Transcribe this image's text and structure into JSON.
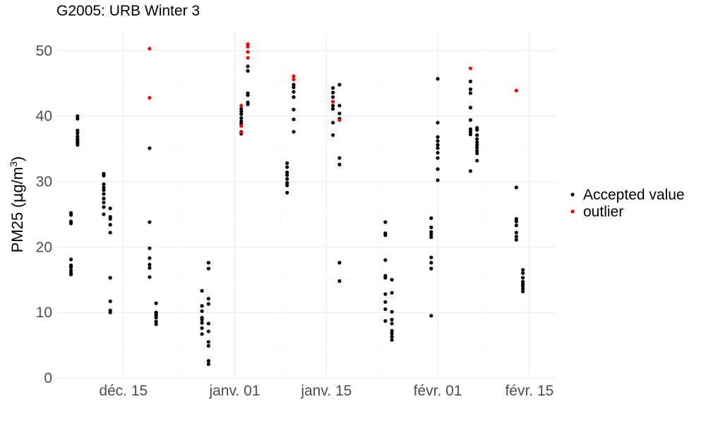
{
  "chart_data": {
    "type": "scatter",
    "title": "G2005: URB Winter 3",
    "xlabel": "",
    "ylabel_main": "PM25 (",
    "ylabel_mu": "µ",
    "ylabel_rest": "g/m",
    "ylabel_sup": "3",
    "ylabel_close": ")",
    "xlim": [
      "2015-12-05",
      "2016-02-19"
    ],
    "ylim": [
      0,
      53
    ],
    "x_ticks": [
      {
        "date": "2015-12-15",
        "label": "déc. 15"
      },
      {
        "date": "2016-01-01",
        "label": "janv. 01"
      },
      {
        "date": "2016-01-15",
        "label": "janv. 15"
      },
      {
        "date": "2016-02-01",
        "label": "févr. 01"
      },
      {
        "date": "2016-02-15",
        "label": "févr. 15"
      }
    ],
    "y_ticks": [
      0,
      10,
      20,
      30,
      40,
      50
    ],
    "grid": true,
    "legend": {
      "position": "right",
      "entries": [
        {
          "name": "Accepted value",
          "color": "#000000"
        },
        {
          "name": "outlier",
          "color": "#ff0000"
        }
      ]
    },
    "series": [
      {
        "name": "Accepted value",
        "color": "#000000",
        "points": [
          [
            "2015-12-07",
            25.2
          ],
          [
            "2015-12-07",
            24.9
          ],
          [
            "2015-12-07",
            23.9
          ],
          [
            "2015-12-07",
            23.6
          ],
          [
            "2015-12-07",
            18.1
          ],
          [
            "2015-12-07",
            17.2
          ],
          [
            "2015-12-07",
            16.9
          ],
          [
            "2015-12-07",
            16.4
          ],
          [
            "2015-12-07",
            16.0
          ],
          [
            "2015-12-07",
            15.8
          ],
          [
            "2015-12-08",
            40.0
          ],
          [
            "2015-12-08",
            39.6
          ],
          [
            "2015-12-08",
            37.8
          ],
          [
            "2015-12-08",
            37.4
          ],
          [
            "2015-12-08",
            36.9
          ],
          [
            "2015-12-08",
            36.5
          ],
          [
            "2015-12-08",
            36.2
          ],
          [
            "2015-12-08",
            35.9
          ],
          [
            "2015-12-08",
            35.6
          ],
          [
            "2015-12-12",
            31.2
          ],
          [
            "2015-12-12",
            30.9
          ],
          [
            "2015-12-12",
            29.6
          ],
          [
            "2015-12-12",
            29.1
          ],
          [
            "2015-12-12",
            28.7
          ],
          [
            "2015-12-12",
            28.1
          ],
          [
            "2015-12-12",
            27.4
          ],
          [
            "2015-12-12",
            26.8
          ],
          [
            "2015-12-12",
            26.1
          ],
          [
            "2015-12-12",
            25.0
          ],
          [
            "2015-12-13",
            25.9
          ],
          [
            "2015-12-13",
            24.6
          ],
          [
            "2015-12-13",
            24.3
          ],
          [
            "2015-12-13",
            23.4
          ],
          [
            "2015-12-13",
            22.2
          ],
          [
            "2015-12-13",
            15.3
          ],
          [
            "2015-12-13",
            11.7
          ],
          [
            "2015-12-13",
            10.3
          ],
          [
            "2015-12-13",
            10.0
          ],
          [
            "2015-12-19",
            35.1
          ],
          [
            "2015-12-19",
            23.8
          ],
          [
            "2015-12-19",
            19.8
          ],
          [
            "2015-12-19",
            18.3
          ],
          [
            "2015-12-19",
            17.3
          ],
          [
            "2015-12-19",
            16.8
          ],
          [
            "2015-12-19",
            15.4
          ],
          [
            "2015-12-20",
            11.4
          ],
          [
            "2015-12-20",
            10.0
          ],
          [
            "2015-12-20",
            9.8
          ],
          [
            "2015-12-20",
            9.5
          ],
          [
            "2015-12-20",
            9.2
          ],
          [
            "2015-12-20",
            8.6
          ],
          [
            "2015-12-20",
            8.2
          ],
          [
            "2015-12-27",
            13.3
          ],
          [
            "2015-12-27",
            11.0
          ],
          [
            "2015-12-27",
            10.2
          ],
          [
            "2015-12-27",
            9.2
          ],
          [
            "2015-12-27",
            8.9
          ],
          [
            "2015-12-27",
            8.4
          ],
          [
            "2015-12-27",
            7.6
          ],
          [
            "2015-12-27",
            6.7
          ],
          [
            "2015-12-28",
            17.6
          ],
          [
            "2015-12-28",
            16.7
          ],
          [
            "2015-12-28",
            12.1
          ],
          [
            "2015-12-28",
            11.3
          ],
          [
            "2015-12-28",
            8.3
          ],
          [
            "2015-12-28",
            7.1
          ],
          [
            "2015-12-28",
            5.5
          ],
          [
            "2015-12-28",
            4.9
          ],
          [
            "2015-12-28",
            2.6
          ],
          [
            "2015-12-28",
            2.1
          ],
          [
            "2016-01-02",
            41.1
          ],
          [
            "2016-01-02",
            40.7
          ],
          [
            "2016-01-02",
            40.3
          ],
          [
            "2016-01-02",
            39.7
          ],
          [
            "2016-01-02",
            39.2
          ],
          [
            "2016-01-02",
            38.8
          ],
          [
            "2016-01-02",
            37.6
          ],
          [
            "2016-01-02",
            37.3
          ],
          [
            "2016-01-03",
            47.6
          ],
          [
            "2016-01-03",
            46.9
          ],
          [
            "2016-01-03",
            43.5
          ],
          [
            "2016-01-03",
            43.2
          ],
          [
            "2016-01-03",
            42.1
          ],
          [
            "2016-01-03",
            41.8
          ],
          [
            "2016-01-09",
            32.8
          ],
          [
            "2016-01-09",
            32.2
          ],
          [
            "2016-01-09",
            31.4
          ],
          [
            "2016-01-09",
            31.0
          ],
          [
            "2016-01-09",
            30.4
          ],
          [
            "2016-01-09",
            29.8
          ],
          [
            "2016-01-09",
            29.4
          ],
          [
            "2016-01-09",
            28.3
          ],
          [
            "2016-01-10",
            44.8
          ],
          [
            "2016-01-10",
            44.4
          ],
          [
            "2016-01-10",
            43.7
          ],
          [
            "2016-01-10",
            42.9
          ],
          [
            "2016-01-10",
            41.0
          ],
          [
            "2016-01-10",
            39.5
          ],
          [
            "2016-01-10",
            37.6
          ],
          [
            "2016-01-16",
            44.3
          ],
          [
            "2016-01-16",
            43.6
          ],
          [
            "2016-01-16",
            42.9
          ],
          [
            "2016-01-16",
            41.6
          ],
          [
            "2016-01-16",
            41.1
          ],
          [
            "2016-01-16",
            39.0
          ],
          [
            "2016-01-16",
            37.1
          ],
          [
            "2016-01-17",
            44.8
          ],
          [
            "2016-01-17",
            41.6
          ],
          [
            "2016-01-17",
            40.4
          ],
          [
            "2016-01-17",
            39.6
          ],
          [
            "2016-01-17",
            33.6
          ],
          [
            "2016-01-17",
            32.6
          ],
          [
            "2016-01-17",
            17.6
          ],
          [
            "2016-01-17",
            14.8
          ],
          [
            "2016-01-24",
            23.8
          ],
          [
            "2016-01-24",
            22.1
          ],
          [
            "2016-01-24",
            21.8
          ],
          [
            "2016-01-24",
            18.0
          ],
          [
            "2016-01-24",
            15.6
          ],
          [
            "2016-01-24",
            15.3
          ],
          [
            "2016-01-24",
            12.8
          ],
          [
            "2016-01-24",
            11.6
          ],
          [
            "2016-01-24",
            10.5
          ],
          [
            "2016-01-24",
            8.7
          ],
          [
            "2016-01-25",
            15.0
          ],
          [
            "2016-01-25",
            13.0
          ],
          [
            "2016-01-25",
            10.1
          ],
          [
            "2016-01-25",
            8.9
          ],
          [
            "2016-01-25",
            8.3
          ],
          [
            "2016-01-25",
            7.2
          ],
          [
            "2016-01-25",
            6.8
          ],
          [
            "2016-01-25",
            6.3
          ],
          [
            "2016-01-25",
            5.8
          ],
          [
            "2016-01-31",
            24.4
          ],
          [
            "2016-01-31",
            23.0
          ],
          [
            "2016-01-31",
            22.3
          ],
          [
            "2016-01-31",
            21.9
          ],
          [
            "2016-01-31",
            21.5
          ],
          [
            "2016-01-31",
            18.4
          ],
          [
            "2016-01-31",
            17.6
          ],
          [
            "2016-01-31",
            16.7
          ],
          [
            "2016-01-31",
            9.5
          ],
          [
            "2016-02-01",
            45.7
          ],
          [
            "2016-02-01",
            39.0
          ],
          [
            "2016-02-01",
            36.8
          ],
          [
            "2016-02-01",
            36.2
          ],
          [
            "2016-02-01",
            35.6
          ],
          [
            "2016-02-01",
            35.1
          ],
          [
            "2016-02-01",
            34.4
          ],
          [
            "2016-02-01",
            33.6
          ],
          [
            "2016-02-01",
            31.9
          ],
          [
            "2016-02-01",
            30.2
          ],
          [
            "2016-02-06",
            45.3
          ],
          [
            "2016-02-06",
            44.1
          ],
          [
            "2016-02-06",
            43.5
          ],
          [
            "2016-02-06",
            41.3
          ],
          [
            "2016-02-06",
            39.4
          ],
          [
            "2016-02-06",
            38.0
          ],
          [
            "2016-02-06",
            37.6
          ],
          [
            "2016-02-06",
            37.2
          ],
          [
            "2016-02-06",
            31.6
          ],
          [
            "2016-02-07",
            38.2
          ],
          [
            "2016-02-07",
            37.9
          ],
          [
            "2016-02-07",
            37.1
          ],
          [
            "2016-02-07",
            36.5
          ],
          [
            "2016-02-07",
            36.0
          ],
          [
            "2016-02-07",
            35.6
          ],
          [
            "2016-02-07",
            35.2
          ],
          [
            "2016-02-07",
            34.7
          ],
          [
            "2016-02-07",
            34.3
          ],
          [
            "2016-02-07",
            33.2
          ],
          [
            "2016-02-13",
            29.1
          ],
          [
            "2016-02-13",
            24.3
          ],
          [
            "2016-02-13",
            23.9
          ],
          [
            "2016-02-13",
            23.3
          ],
          [
            "2016-02-13",
            22.2
          ],
          [
            "2016-02-13",
            21.6
          ],
          [
            "2016-02-13",
            21.1
          ],
          [
            "2016-02-14",
            16.5
          ],
          [
            "2016-02-14",
            16.0
          ],
          [
            "2016-02-14",
            15.3
          ],
          [
            "2016-02-14",
            14.7
          ],
          [
            "2016-02-14",
            14.3
          ],
          [
            "2016-02-14",
            14.0
          ],
          [
            "2016-02-14",
            13.6
          ],
          [
            "2016-02-14",
            13.2
          ]
        ]
      },
      {
        "name": "outlier",
        "color": "#ff0000",
        "points": [
          [
            "2015-12-19",
            50.3
          ],
          [
            "2015-12-19",
            42.8
          ],
          [
            "2016-01-02",
            41.6
          ],
          [
            "2016-01-02",
            38.5
          ],
          [
            "2016-01-02",
            37.5
          ],
          [
            "2016-01-03",
            51.0
          ],
          [
            "2016-01-03",
            50.6
          ],
          [
            "2016-01-03",
            49.8
          ],
          [
            "2016-01-03",
            48.9
          ],
          [
            "2016-01-10",
            46.1
          ],
          [
            "2016-01-10",
            45.6
          ],
          [
            "2016-01-16",
            42.2
          ],
          [
            "2016-01-17",
            39.4
          ],
          [
            "2016-02-06",
            47.3
          ],
          [
            "2016-02-13",
            43.9
          ]
        ]
      }
    ]
  }
}
